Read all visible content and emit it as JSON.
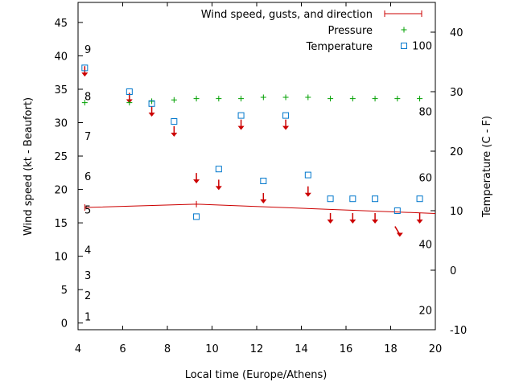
{
  "chart_data": {
    "type": "scatter",
    "xlabel": "Local time (Europe/Athens)",
    "ylabel": "Wind speed (kt - Beaufort)",
    "y2label": "Temperature (C - F)",
    "xlim": [
      4,
      20
    ],
    "ylim": [
      -1,
      48
    ],
    "y2lim": [
      -10,
      45
    ],
    "x_ticks": [
      "4",
      "6",
      "8",
      "10",
      "12",
      "14",
      "16",
      "18",
      "20"
    ],
    "y_ticks": [
      "0",
      "5",
      "10",
      "15",
      "20",
      "25",
      "30",
      "35",
      "40",
      "45"
    ],
    "y2_ticks": [
      "-10",
      "0",
      "10",
      "20",
      "30",
      "40"
    ],
    "beaufort_labels": [
      {
        "label": "1",
        "kt": 1
      },
      {
        "label": "2",
        "kt": 4.2
      },
      {
        "label": "3",
        "kt": 7.2
      },
      {
        "label": "4",
        "kt": 11
      },
      {
        "label": "5",
        "kt": 17
      },
      {
        "label": "6",
        "kt": 22
      },
      {
        "label": "7",
        "kt": 28
      },
      {
        "label": "8",
        "kt": 34
      },
      {
        "label": "9",
        "kt": 41
      }
    ],
    "fahrenheit_labels": [
      {
        "label": "20",
        "c": -6.7
      },
      {
        "label": "40",
        "c": 4.4
      },
      {
        "label": "60",
        "c": 15.6
      },
      {
        "label": "80",
        "c": 26.7
      },
      {
        "label": "100",
        "c": 37.8
      }
    ],
    "legend_position": "top-right",
    "grid": false,
    "series": [
      {
        "name": "Wind speed, gusts, and direction",
        "color": "#cc0000",
        "x": [
          4.3,
          9.3,
          20
        ],
        "y": [
          17.3,
          17.8,
          16.4
        ],
        "arrows": [
          {
            "x": 4.3,
            "y": 37.5,
            "dir": "S"
          },
          {
            "x": 6.3,
            "y": 33.5,
            "dir": "S"
          },
          {
            "x": 7.3,
            "y": 31.5,
            "dir": "S"
          },
          {
            "x": 8.3,
            "y": 28.5,
            "dir": "S"
          },
          {
            "x": 9.3,
            "y": 21.5,
            "dir": "S"
          },
          {
            "x": 10.3,
            "y": 20.5,
            "dir": "S"
          },
          {
            "x": 11.3,
            "y": 29.5,
            "dir": "S"
          },
          {
            "x": 12.3,
            "y": 18.5,
            "dir": "S"
          },
          {
            "x": 13.3,
            "y": 29.5,
            "dir": "S"
          },
          {
            "x": 14.3,
            "y": 19.5,
            "dir": "S"
          },
          {
            "x": 15.3,
            "y": 15.5,
            "dir": "S"
          },
          {
            "x": 16.3,
            "y": 15.5,
            "dir": "S"
          },
          {
            "x": 17.3,
            "y": 15.5,
            "dir": "S"
          },
          {
            "x": 18.3,
            "y": 13.5,
            "dir": "SSE"
          },
          {
            "x": 19.3,
            "y": 15.5,
            "dir": "S"
          }
        ]
      },
      {
        "name": "Pressure",
        "color": "#00a000",
        "x": [
          4.3,
          6.3,
          7.3,
          8.3,
          9.3,
          10.3,
          11.3,
          12.3,
          13.3,
          14.3,
          15.3,
          16.3,
          17.3,
          18.3,
          19.3
        ],
        "y": [
          33.0,
          33.0,
          33.2,
          33.4,
          33.6,
          33.6,
          33.6,
          33.8,
          33.8,
          33.8,
          33.6,
          33.6,
          33.6,
          33.6,
          33.6
        ]
      },
      {
        "name": "Temperature",
        "color": "#0077cc",
        "axis": "y2",
        "x": [
          4.3,
          6.3,
          7.3,
          8.3,
          9.3,
          10.3,
          11.3,
          12.3,
          13.3,
          14.3,
          15.3,
          16.3,
          17.3,
          18.3,
          19.3
        ],
        "y": [
          34,
          30,
          28,
          25,
          9,
          17,
          26,
          15,
          26,
          16,
          12,
          12,
          12,
          10,
          12
        ]
      }
    ]
  }
}
